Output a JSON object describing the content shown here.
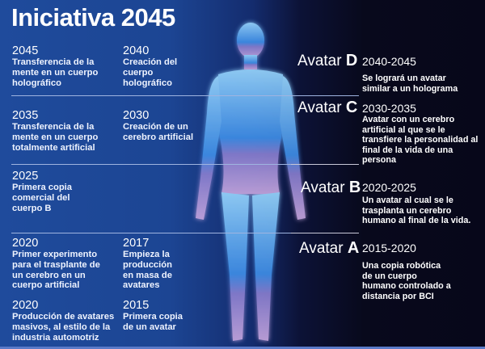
{
  "title": "Iniciativa 2045",
  "timeline": [
    {
      "year": "2045",
      "text": "Transferencia de la mente en un cuerpo holográfico"
    },
    {
      "year": "2040",
      "text": "Creación del cuerpo holográfico"
    },
    {
      "year": "2035",
      "text": "Transferencia de la mente en un cuerpo totalmente artificial"
    },
    {
      "year": "2030",
      "text": "Creación de un cerebro artificial"
    },
    {
      "year": "2025",
      "text": "Primera copia comercial del cuerpo B"
    },
    {
      "year": "2020",
      "text": "Primer experimento para el trasplante de un cerebro en un cuerpo artificial"
    },
    {
      "year": "2017",
      "text": "Empieza la producción en masa de avatares"
    },
    {
      "year": "2020",
      "text": "Producción de avatares masivos, al estilo de la industria automotriz"
    },
    {
      "year": "2015",
      "text": "Primera copia de un avatar"
    }
  ],
  "avatars": [
    {
      "word": "Avatar",
      "letter": "D",
      "range": "2040-2045",
      "text": "Se logrará un avatar similar a un  holograma"
    },
    {
      "word": "Avatar",
      "letter": "C",
      "range": "2030-2035",
      "text": "Avatar con un cerebro artificial al que se le transfiere la personalidad al final de la vida de una persona"
    },
    {
      "word": "Avatar",
      "letter": "B",
      "range": "2020-2025",
      "text": "Un avatar al cual se le trasplanta un cerebro humano al final de la vida."
    },
    {
      "word": "Avatar",
      "letter": "A",
      "range": "2015-2020",
      "text": "Una copia robótica de un cuerpo humano controlado a distancia por BCI"
    }
  ],
  "colors": {
    "left_bg": "#1f4b9c",
    "right_bg": "#07071a",
    "glow": "#4fb4ff"
  }
}
